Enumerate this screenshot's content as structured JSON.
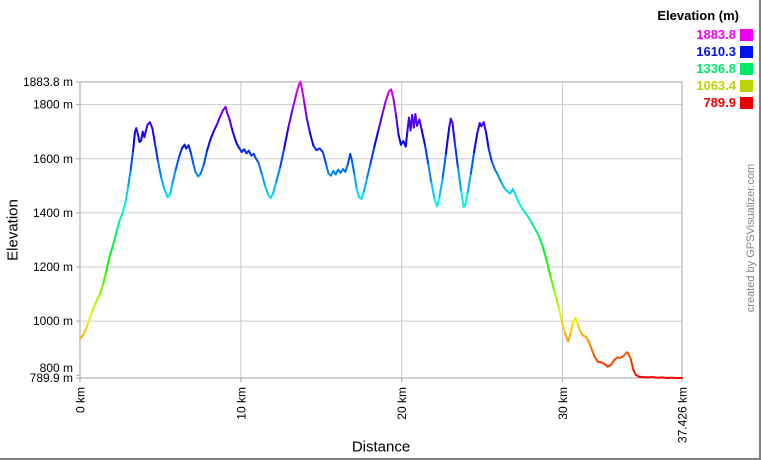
{
  "watermark": "created by GPSVisualizer.com",
  "legend": {
    "title": "Elevation (m)",
    "entries": [
      {
        "label": "1883.8",
        "color": "#ee00ee"
      },
      {
        "label": "1610.3",
        "color": "#0011ee"
      },
      {
        "label": "1336.8",
        "color": "#00e868"
      },
      {
        "label": "1063.4",
        "color": "#bcd500"
      },
      {
        "label": "789.9",
        "color": "#ee0000"
      }
    ]
  },
  "axes": {
    "y": {
      "title": "Elevation",
      "ticks": [
        {
          "label": "1883.8 m",
          "value": 1883.8
        },
        {
          "label": "1800 m",
          "value": 1800
        },
        {
          "label": "1600 m",
          "value": 1600
        },
        {
          "label": "1400 m",
          "value": 1400
        },
        {
          "label": "1200 m",
          "value": 1200
        },
        {
          "label": "1000 m",
          "value": 1000
        },
        {
          "label": "800 m",
          "value": 800
        },
        {
          "label": "789.9 m",
          "value": 789.9
        }
      ],
      "grid_values": [
        1800,
        1600,
        1400,
        1200,
        1000
      ]
    },
    "x": {
      "title": "Distance",
      "ticks": [
        {
          "label": "0 km",
          "value": 0
        },
        {
          "label": "10 km",
          "value": 10
        },
        {
          "label": "20 km",
          "value": 20
        },
        {
          "label": "30 km",
          "value": 30
        },
        {
          "label": "37.426 km",
          "value": 37.426
        }
      ],
      "grid_values": [
        10,
        20,
        30
      ]
    }
  },
  "colors": {
    "grid": "#cccccc",
    "frame": "#a6a6a6",
    "tick": "#a6a6a6",
    "text": "#000000",
    "image_border": "#808080"
  },
  "chart_data": {
    "type": "line",
    "title": "",
    "xlabel": "Distance",
    "ylabel": "Elevation",
    "x_unit": "km",
    "y_unit": "m",
    "xlim": [
      0,
      37.426
    ],
    "ylim": [
      789.9,
      1883.8
    ],
    "total_distance_km": 37.426,
    "min_elevation_m": 789.9,
    "max_elevation_m": 1883.8,
    "legend_breakpoints_m": [
      1883.8,
      1610.3,
      1336.8,
      1063.4,
      789.9
    ],
    "color_mapping": "line colored by elevation, rainbow hue 0-300: red=789.9m, yellow-green=1063.4m, green=1336.8m, blue=1610.3m, magenta=1883.8m",
    "grid": true,
    "legend_position": "top-right",
    "points": [
      [
        0,
        935
      ],
      [
        0.2,
        950
      ],
      [
        0.4,
        975
      ],
      [
        0.55,
        1000
      ],
      [
        0.75,
        1035
      ],
      [
        0.95,
        1065
      ],
      [
        1.1,
        1085
      ],
      [
        1.25,
        1100
      ],
      [
        1.45,
        1140
      ],
      [
        1.65,
        1190
      ],
      [
        1.85,
        1240
      ],
      [
        2.05,
        1280
      ],
      [
        2.25,
        1325
      ],
      [
        2.45,
        1370
      ],
      [
        2.65,
        1400
      ],
      [
        2.85,
        1445
      ],
      [
        3.0,
        1500
      ],
      [
        3.15,
        1560
      ],
      [
        3.3,
        1630
      ],
      [
        3.42,
        1700
      ],
      [
        3.5,
        1713
      ],
      [
        3.6,
        1690
      ],
      [
        3.7,
        1662
      ],
      [
        3.8,
        1668
      ],
      [
        3.9,
        1700
      ],
      [
        4.0,
        1680
      ],
      [
        4.1,
        1705
      ],
      [
        4.2,
        1726
      ],
      [
        4.35,
        1735
      ],
      [
        4.5,
        1712
      ],
      [
        4.65,
        1660
      ],
      [
        4.85,
        1590
      ],
      [
        5.05,
        1530
      ],
      [
        5.25,
        1487
      ],
      [
        5.45,
        1458
      ],
      [
        5.6,
        1470
      ],
      [
        5.75,
        1510
      ],
      [
        5.95,
        1560
      ],
      [
        6.15,
        1605
      ],
      [
        6.35,
        1640
      ],
      [
        6.5,
        1652
      ],
      [
        6.6,
        1638
      ],
      [
        6.75,
        1650
      ],
      [
        6.9,
        1620
      ],
      [
        7.05,
        1580
      ],
      [
        7.2,
        1548
      ],
      [
        7.35,
        1535
      ],
      [
        7.5,
        1545
      ],
      [
        7.7,
        1580
      ],
      [
        7.9,
        1630
      ],
      [
        8.1,
        1670
      ],
      [
        8.3,
        1700
      ],
      [
        8.5,
        1725
      ],
      [
        8.7,
        1755
      ],
      [
        8.9,
        1780
      ],
      [
        9.05,
        1792
      ],
      [
        9.15,
        1770
      ],
      [
        9.3,
        1745
      ],
      [
        9.45,
        1710
      ],
      [
        9.6,
        1680
      ],
      [
        9.75,
        1655
      ],
      [
        9.9,
        1640
      ],
      [
        10.05,
        1625
      ],
      [
        10.2,
        1635
      ],
      [
        10.35,
        1620
      ],
      [
        10.5,
        1630
      ],
      [
        10.65,
        1612
      ],
      [
        10.8,
        1618
      ],
      [
        10.95,
        1600
      ],
      [
        11.1,
        1585
      ],
      [
        11.3,
        1545
      ],
      [
        11.5,
        1500
      ],
      [
        11.7,
        1468
      ],
      [
        11.85,
        1455
      ],
      [
        12.0,
        1472
      ],
      [
        12.2,
        1515
      ],
      [
        12.45,
        1570
      ],
      [
        12.7,
        1640
      ],
      [
        12.95,
        1715
      ],
      [
        13.2,
        1780
      ],
      [
        13.45,
        1840
      ],
      [
        13.6,
        1872
      ],
      [
        13.7,
        1884
      ],
      [
        13.8,
        1858
      ],
      [
        13.95,
        1805
      ],
      [
        14.1,
        1750
      ],
      [
        14.3,
        1695
      ],
      [
        14.5,
        1650
      ],
      [
        14.7,
        1632
      ],
      [
        14.9,
        1638
      ],
      [
        15.1,
        1625
      ],
      [
        15.3,
        1580
      ],
      [
        15.45,
        1545
      ],
      [
        15.6,
        1538
      ],
      [
        15.75,
        1555
      ],
      [
        15.9,
        1542
      ],
      [
        16.05,
        1560
      ],
      [
        16.2,
        1548
      ],
      [
        16.35,
        1562
      ],
      [
        16.5,
        1552
      ],
      [
        16.65,
        1580
      ],
      [
        16.8,
        1618
      ],
      [
        16.9,
        1595
      ],
      [
        17.05,
        1545
      ],
      [
        17.2,
        1490
      ],
      [
        17.35,
        1458
      ],
      [
        17.5,
        1452
      ],
      [
        17.65,
        1480
      ],
      [
        17.85,
        1530
      ],
      [
        18.05,
        1580
      ],
      [
        18.3,
        1645
      ],
      [
        18.55,
        1705
      ],
      [
        18.8,
        1765
      ],
      [
        19.0,
        1812
      ],
      [
        19.2,
        1848
      ],
      [
        19.35,
        1856
      ],
      [
        19.5,
        1818
      ],
      [
        19.65,
        1760
      ],
      [
        19.8,
        1690
      ],
      [
        19.95,
        1652
      ],
      [
        20.1,
        1665
      ],
      [
        20.25,
        1645
      ],
      [
        20.35,
        1700
      ],
      [
        20.45,
        1752
      ],
      [
        20.55,
        1705
      ],
      [
        20.65,
        1762
      ],
      [
        20.75,
        1715
      ],
      [
        20.85,
        1765
      ],
      [
        20.95,
        1722
      ],
      [
        21.1,
        1745
      ],
      [
        21.25,
        1705
      ],
      [
        21.45,
        1650
      ],
      [
        21.65,
        1580
      ],
      [
        21.85,
        1510
      ],
      [
        22.05,
        1450
      ],
      [
        22.2,
        1424
      ],
      [
        22.35,
        1460
      ],
      [
        22.55,
        1530
      ],
      [
        22.75,
        1620
      ],
      [
        22.95,
        1715
      ],
      [
        23.05,
        1748
      ],
      [
        23.15,
        1735
      ],
      [
        23.3,
        1660
      ],
      [
        23.5,
        1565
      ],
      [
        23.7,
        1480
      ],
      [
        23.85,
        1422
      ],
      [
        23.95,
        1428
      ],
      [
        24.1,
        1475
      ],
      [
        24.3,
        1545
      ],
      [
        24.5,
        1625
      ],
      [
        24.7,
        1695
      ],
      [
        24.85,
        1732
      ],
      [
        24.95,
        1720
      ],
      [
        25.1,
        1735
      ],
      [
        25.25,
        1695
      ],
      [
        25.4,
        1640
      ],
      [
        25.6,
        1590
      ],
      [
        25.8,
        1560
      ],
      [
        26.0,
        1538
      ],
      [
        26.2,
        1512
      ],
      [
        26.4,
        1490
      ],
      [
        26.6,
        1478
      ],
      [
        26.75,
        1472
      ],
      [
        26.9,
        1488
      ],
      [
        27.05,
        1470
      ],
      [
        27.25,
        1442
      ],
      [
        27.5,
        1415
      ],
      [
        27.75,
        1395
      ],
      [
        28.0,
        1372
      ],
      [
        28.25,
        1345
      ],
      [
        28.5,
        1318
      ],
      [
        28.75,
        1280
      ],
      [
        29.0,
        1225
      ],
      [
        29.25,
        1165
      ],
      [
        29.5,
        1110
      ],
      [
        29.75,
        1055
      ],
      [
        29.95,
        1000
      ],
      [
        30.15,
        955
      ],
      [
        30.35,
        925
      ],
      [
        30.5,
        955
      ],
      [
        30.65,
        995
      ],
      [
        30.8,
        1012
      ],
      [
        30.95,
        988
      ],
      [
        31.1,
        962
      ],
      [
        31.25,
        948
      ],
      [
        31.45,
        942
      ],
      [
        31.6,
        928
      ],
      [
        31.8,
        898
      ],
      [
        32.0,
        868
      ],
      [
        32.2,
        850
      ],
      [
        32.4,
        848
      ],
      [
        32.6,
        842
      ],
      [
        32.8,
        832
      ],
      [
        33.0,
        838
      ],
      [
        33.2,
        855
      ],
      [
        33.4,
        866
      ],
      [
        33.6,
        864
      ],
      [
        33.8,
        872
      ],
      [
        34.0,
        885
      ],
      [
        34.1,
        880
      ],
      [
        34.25,
        858
      ],
      [
        34.4,
        820
      ],
      [
        34.55,
        802
      ],
      [
        34.75,
        795
      ],
      [
        35.0,
        793
      ],
      [
        35.3,
        792
      ],
      [
        35.6,
        793
      ],
      [
        35.9,
        791
      ],
      [
        36.2,
        792
      ],
      [
        36.5,
        790
      ],
      [
        36.8,
        791
      ],
      [
        37.1,
        790
      ],
      [
        37.426,
        790
      ]
    ]
  }
}
